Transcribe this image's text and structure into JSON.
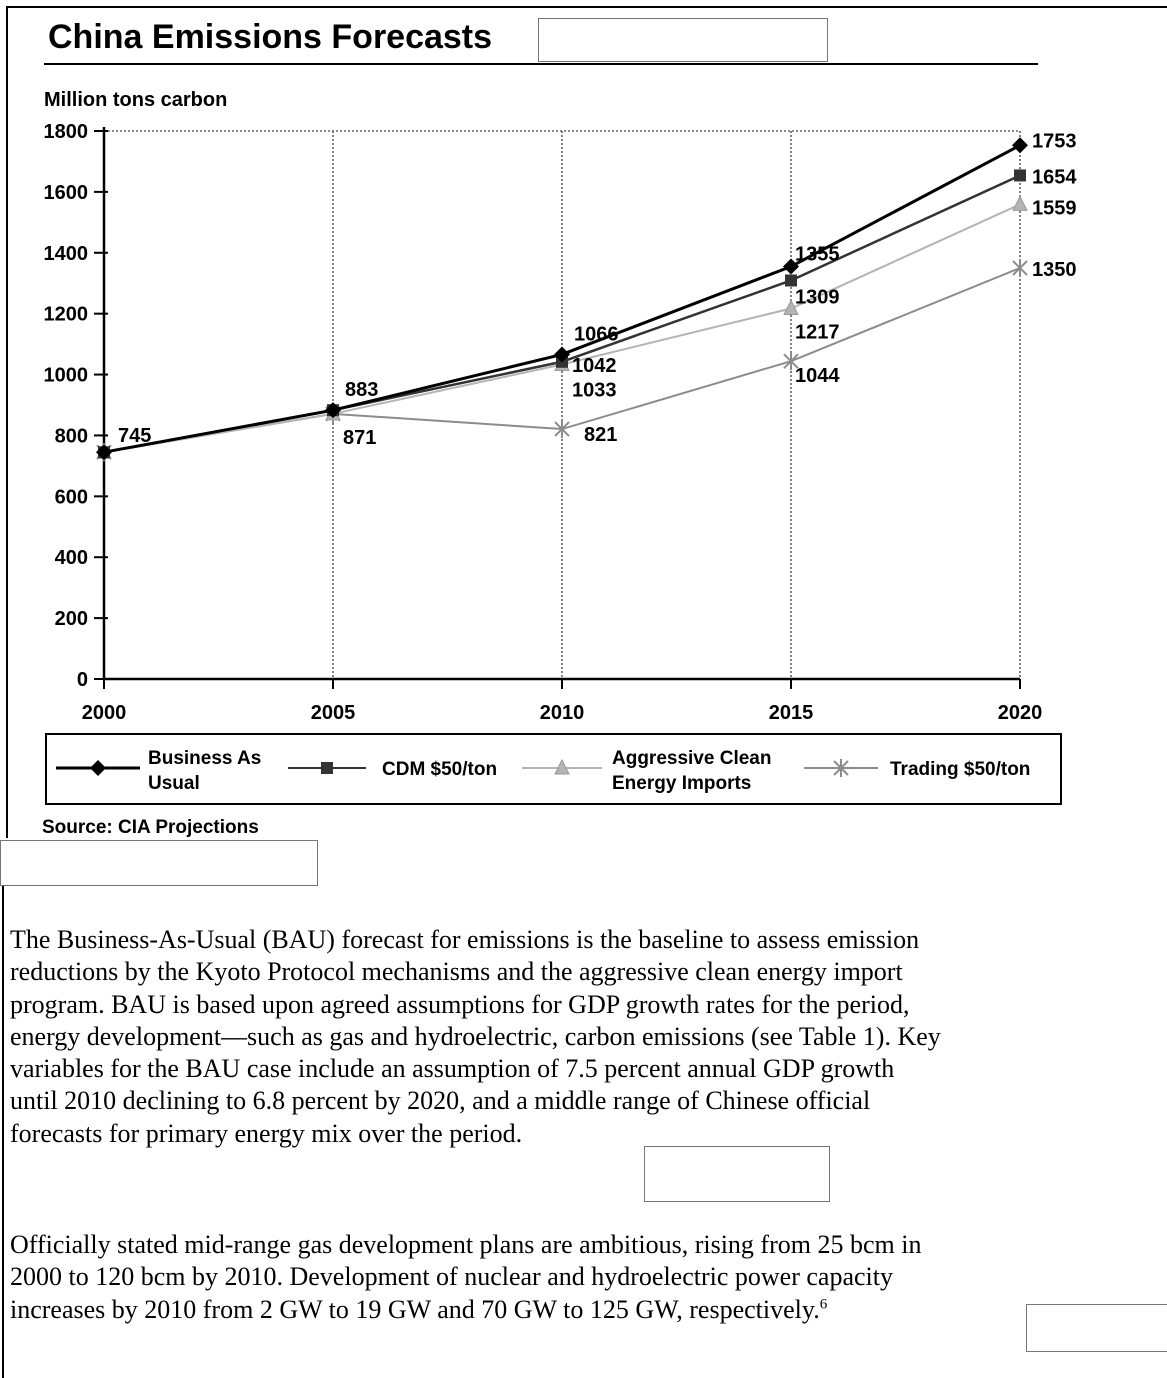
{
  "document": {
    "title": "China Emissions Forecasts",
    "paragraphs": [
      [
        "The Business-As-Usual (BAU) forecast for emissions is the baseline to assess emission",
        "reductions by the Kyoto Protocol mechanisms and the aggressive clean energy import",
        "program.  BAU is based upon agreed assumptions for GDP growth rates for the period,",
        "energy development—such as gas and hydroelectric, carbon emissions (see Table 1).  Key",
        "variables for the BAU case include an assumption of 7.5 percent annual GDP growth",
        "until 2010 declining to 6.8 percent by 2020, and a middle range of Chinese official",
        "forecasts for primary energy mix over the period."
      ],
      [
        "Officially stated mid-range gas development plans are ambitious, rising from 25 bcm in",
        "2000 to 120 bcm by 2010.  Development of nuclear and hydroelectric power capacity",
        "increases by 2010 from 2 GW to 19 GW and 70 GW to 125 GW, respectively."
      ]
    ],
    "footnote_ref": "6"
  },
  "chart_data": {
    "type": "line",
    "ylabel": "Million tons carbon",
    "source": "Source: CIA Projections",
    "x": [
      2000,
      2005,
      2010,
      2015,
      2020
    ],
    "x_tick_labels": [
      "2000",
      "2005",
      "2010",
      "2015",
      "2020"
    ],
    "ylim": [
      0,
      1800
    ],
    "y_ticks": [
      0,
      200,
      400,
      600,
      800,
      1000,
      1200,
      1400,
      1600,
      1800
    ],
    "y_tick_labels": [
      "0",
      "200",
      "400",
      "600",
      "800",
      "1000",
      "1200",
      "1400",
      "1600",
      "1800"
    ],
    "grid": "vertical",
    "legend_position": "bottom",
    "series": [
      {
        "name": "Business As Usual",
        "legend_lines": [
          "Business As",
          "Usual"
        ],
        "values": [
          745,
          883,
          1066,
          1355,
          1753
        ],
        "color": "#000000",
        "marker": "diamond"
      },
      {
        "name": "CDM $50/ton",
        "legend_lines": [
          "CDM $50/ton"
        ],
        "values": [
          745,
          883,
          1042,
          1309,
          1654
        ],
        "color": "#333333",
        "marker": "square"
      },
      {
        "name": "Aggressive Clean Energy Imports",
        "legend_lines": [
          "Aggressive Clean",
          "Energy Imports"
        ],
        "values": [
          745,
          871,
          1033,
          1217,
          1559
        ],
        "color": "#b4b4b4",
        "marker": "triangle"
      },
      {
        "name": "Trading $50/ton",
        "legend_lines": [
          "Trading $50/ton"
        ],
        "values": [
          745,
          871,
          821,
          1044,
          1350
        ],
        "color": "#8c8c8c",
        "marker": "star"
      }
    ],
    "data_labels": [
      {
        "x": 2000,
        "text": "745"
      },
      {
        "x": 2005,
        "text": "883"
      },
      {
        "x": 2005,
        "text": "871"
      },
      {
        "x": 2010,
        "text": "1066"
      },
      {
        "x": 2010,
        "text": "1042"
      },
      {
        "x": 2010,
        "text": "1033"
      },
      {
        "x": 2010,
        "text": "821"
      },
      {
        "x": 2015,
        "text": "1355"
      },
      {
        "x": 2015,
        "text": "1309"
      },
      {
        "x": 2015,
        "text": "1217"
      },
      {
        "x": 2015,
        "text": "1044"
      },
      {
        "x": 2020,
        "text": "1753"
      },
      {
        "x": 2020,
        "text": "1654"
      },
      {
        "x": 2020,
        "text": "1559"
      },
      {
        "x": 2020,
        "text": "1350"
      }
    ]
  }
}
